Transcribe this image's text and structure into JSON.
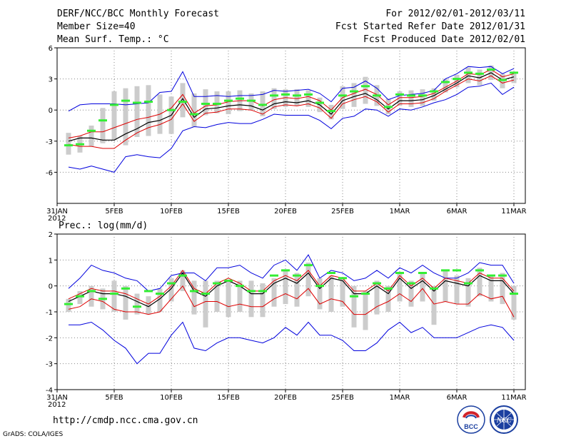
{
  "header": {
    "title": "DERF/NCC/BCC Monthly Forecast",
    "member_size": "Member Size=40",
    "variable": "Mean Surf. Temp.: °C",
    "period": "For 2012/02/01-2012/03/11",
    "started": "Fcst Started Refer Date 2012/01/31",
    "produced": "Fcst Produced Date 2012/02/01"
  },
  "lower_panel_label": "Prec.: log(mm/d)",
  "footer": {
    "url": "http://cmdp.ncc.cma.gov.cn",
    "credit": "GrADS: COLA/IGES"
  },
  "logos": {
    "bcc": "BCC",
    "ncc": "NCC"
  },
  "colors": {
    "envelope": "#0000dd",
    "spread": "#dd0000",
    "mean": "#000000",
    "obs": "#33ee33",
    "box": "#cccccc"
  },
  "chart_data": [
    {
      "type": "line",
      "title": "Mean Surf. Temp.: °C",
      "x_tick_labels": [
        "31JAN",
        "5FEB",
        "10FEB",
        "15FEB",
        "20FEB",
        "25FEB",
        "1MAR",
        "6MAR",
        "11MAR"
      ],
      "x_tick_days": [
        0,
        5,
        10,
        15,
        20,
        25,
        30,
        35,
        40
      ],
      "x_year_label": "2012",
      "ylim": [
        -9,
        6
      ],
      "y_ticks": [
        -6,
        -3,
        0,
        3,
        6
      ],
      "days": [
        1,
        2,
        3,
        4,
        5,
        6,
        7,
        8,
        9,
        10,
        11,
        12,
        13,
        14,
        15,
        16,
        17,
        18,
        19,
        20,
        21,
        22,
        23,
        24,
        25,
        26,
        27,
        28,
        29,
        30,
        31,
        32,
        33,
        34,
        35,
        36,
        37,
        38,
        39,
        40
      ],
      "series": [
        {
          "name": "max",
          "values": [
            -0.1,
            0.5,
            0.6,
            0.6,
            0.6,
            0.5,
            0.6,
            0.7,
            1.7,
            1.8,
            3.7,
            1.3,
            1.3,
            1.4,
            1.3,
            1.4,
            1.4,
            1.5,
            1.9,
            1.8,
            1.9,
            2.0,
            1.6,
            0.8,
            2.1,
            2.2,
            2.8,
            2.1,
            1.0,
            1.4,
            1.5,
            1.6,
            1.9,
            3.0,
            3.5,
            4.2,
            4.1,
            4.2,
            3.5,
            4.0
          ]
        },
        {
          "name": "upper",
          "values": [
            -2.7,
            -2.5,
            -2.1,
            -2.1,
            -1.7,
            -1.3,
            -0.9,
            -0.7,
            -0.4,
            0.2,
            1.5,
            -0.3,
            0.4,
            0.5,
            0.8,
            0.9,
            0.9,
            0.4,
            1.0,
            1.2,
            1.1,
            1.3,
            0.9,
            0.0,
            1.2,
            1.6,
            2.0,
            1.5,
            0.5,
            1.2,
            1.2,
            1.3,
            1.6,
            2.2,
            2.8,
            3.5,
            3.4,
            3.9,
            3.2,
            3.5
          ]
        },
        {
          "name": "mean",
          "values": [
            -3.0,
            -2.7,
            -2.7,
            -2.9,
            -2.9,
            -2.3,
            -1.8,
            -1.2,
            -1.0,
            -0.5,
            1.1,
            -0.7,
            0.1,
            0.2,
            0.4,
            0.5,
            0.4,
            0.0,
            0.6,
            0.8,
            0.7,
            0.9,
            0.5,
            -0.4,
            0.9,
            1.3,
            1.6,
            1.0,
            0.1,
            0.9,
            0.9,
            1.0,
            1.4,
            2.0,
            2.6,
            3.3,
            3.1,
            3.6,
            2.9,
            3.2
          ]
        },
        {
          "name": "lower",
          "values": [
            -3.3,
            -3.5,
            -3.5,
            -3.7,
            -3.7,
            -2.9,
            -2.2,
            -1.7,
            -1.4,
            -0.9,
            0.6,
            -1.1,
            -0.3,
            -0.2,
            0.1,
            0.1,
            0.0,
            -0.4,
            0.3,
            0.5,
            0.4,
            0.6,
            0.2,
            -0.8,
            0.6,
            1.0,
            1.3,
            0.8,
            -0.2,
            0.6,
            0.6,
            0.7,
            1.1,
            1.8,
            2.4,
            3.0,
            2.8,
            3.3,
            2.6,
            2.9
          ]
        },
        {
          "name": "min",
          "values": [
            -5.5,
            -5.7,
            -5.4,
            -5.7,
            -6.0,
            -4.5,
            -4.3,
            -4.5,
            -4.6,
            -3.7,
            -2.0,
            -1.6,
            -1.7,
            -1.4,
            -1.2,
            -1.3,
            -1.3,
            -0.9,
            -0.4,
            -0.5,
            -0.5,
            -0.5,
            -1.0,
            -1.8,
            -0.8,
            -0.6,
            0.1,
            0.0,
            -0.6,
            0.1,
            0.0,
            0.3,
            0.7,
            1.0,
            1.5,
            2.2,
            2.3,
            2.6,
            1.5,
            2.2
          ]
        }
      ],
      "boxes": [
        [
          -4.3,
          -2.2
        ],
        [
          -4.1,
          -2.5
        ],
        [
          -3.5,
          -1.5
        ],
        [
          -3.2,
          0.2
        ],
        [
          -2.9,
          1.8
        ],
        [
          -3.4,
          2.1
        ],
        [
          -2.6,
          2.3
        ],
        [
          -2.5,
          2.4
        ],
        [
          -2.3,
          1.5
        ],
        [
          -2.3,
          1.3
        ],
        [
          -0.7,
          2.6
        ],
        [
          -1.6,
          1.6
        ],
        [
          -0.5,
          2.0
        ],
        [
          -0.3,
          1.8
        ],
        [
          -0.4,
          1.8
        ],
        [
          -0.1,
          1.9
        ],
        [
          0.0,
          1.6
        ],
        [
          -0.6,
          1.8
        ],
        [
          0.1,
          2.1
        ],
        [
          0.3,
          2.0
        ],
        [
          0.4,
          2.0
        ],
        [
          0.3,
          1.9
        ],
        [
          -0.2,
          1.2
        ],
        [
          -0.9,
          0.5
        ],
        [
          0.1,
          2.3
        ],
        [
          0.3,
          2.6
        ],
        [
          0.6,
          3.2
        ],
        [
          0.4,
          2.4
        ],
        [
          -0.4,
          1.1
        ],
        [
          0.4,
          1.8
        ],
        [
          0.3,
          1.9
        ],
        [
          0.4,
          2.0
        ],
        [
          0.9,
          2.1
        ],
        [
          1.7,
          3.0
        ],
        [
          2.2,
          3.4
        ],
        [
          2.6,
          4.1
        ],
        [
          2.4,
          3.9
        ],
        [
          2.9,
          4.3
        ],
        [
          2.1,
          3.5
        ],
        [
          2.6,
          3.7
        ]
      ],
      "observed": [
        -3.4,
        -3.3,
        -2.0,
        -1.0,
        0.5,
        0.9,
        0.7,
        0.8,
        null,
        0.0,
        0.8,
        -0.4,
        0.6,
        0.6,
        0.9,
        1.1,
        0.9,
        0.5,
        1.4,
        1.5,
        1.4,
        1.5,
        0.7,
        -0.1,
        1.4,
        1.8,
        2.3,
        1.4,
        0.3,
        1.5,
        1.4,
        1.4,
        1.8,
        2.7,
        3.0,
        3.6,
        3.5,
        3.9,
        2.9,
        3.6
      ]
    },
    {
      "type": "line",
      "title": "Prec.: log(mm/d)",
      "x_tick_labels": [
        "31JAN",
        "5FEB",
        "10FEB",
        "15FEB",
        "20FEB",
        "25FEB",
        "1MAR",
        "6MAR",
        "11MAR"
      ],
      "x_tick_days": [
        0,
        5,
        10,
        15,
        20,
        25,
        30,
        35,
        40
      ],
      "x_year_label": "2012",
      "ylim": [
        -4,
        2
      ],
      "y_ticks": [
        -4,
        -3,
        -2,
        -1,
        0,
        1,
        2
      ],
      "days": [
        1,
        2,
        3,
        4,
        5,
        6,
        7,
        8,
        9,
        10,
        11,
        12,
        13,
        14,
        15,
        16,
        17,
        18,
        19,
        20,
        21,
        22,
        23,
        24,
        25,
        26,
        27,
        28,
        29,
        30,
        31,
        32,
        33,
        34,
        35,
        36,
        37,
        38,
        39,
        40
      ],
      "series": [
        {
          "name": "max",
          "values": [
            -0.1,
            0.3,
            0.8,
            0.6,
            0.5,
            0.3,
            0.2,
            -0.2,
            -0.1,
            0.4,
            0.5,
            0.5,
            0.2,
            0.7,
            0.7,
            0.8,
            0.5,
            0.3,
            0.8,
            1.0,
            0.6,
            1.2,
            0.3,
            0.6,
            0.5,
            0.2,
            0.3,
            0.6,
            0.3,
            0.7,
            0.5,
            0.8,
            0.5,
            0.3,
            0.3,
            0.5,
            0.9,
            0.8,
            0.8,
            0.1
          ]
        },
        {
          "name": "upper",
          "values": [
            -0.5,
            -0.3,
            -0.1,
            -0.2,
            -0.2,
            -0.3,
            -0.5,
            -0.7,
            -0.4,
            0.0,
            0.6,
            -0.1,
            -0.3,
            0.1,
            0.3,
            0.1,
            -0.2,
            -0.2,
            0.2,
            0.4,
            0.2,
            0.6,
            0.0,
            0.4,
            0.3,
            -0.2,
            -0.2,
            0.1,
            -0.2,
            0.4,
            0.0,
            0.3,
            -0.1,
            0.3,
            0.2,
            0.1,
            0.5,
            0.3,
            0.3,
            -0.2
          ]
        },
        {
          "name": "mean",
          "values": [
            -0.6,
            -0.4,
            -0.2,
            -0.3,
            -0.3,
            -0.4,
            -0.6,
            -0.8,
            -0.5,
            -0.1,
            0.5,
            -0.2,
            -0.4,
            0.0,
            0.2,
            0.0,
            -0.3,
            -0.3,
            0.1,
            0.3,
            0.1,
            0.5,
            -0.1,
            0.3,
            0.2,
            -0.3,
            -0.3,
            0.0,
            -0.3,
            0.3,
            -0.1,
            0.2,
            -0.2,
            0.2,
            0.1,
            0.0,
            0.4,
            0.2,
            0.2,
            -0.3
          ]
        },
        {
          "name": "lower",
          "values": [
            -0.9,
            -0.8,
            -0.5,
            -0.6,
            -0.9,
            -1.0,
            -1.0,
            -1.1,
            -1.0,
            -0.5,
            0.0,
            -0.8,
            -0.6,
            -0.6,
            -0.8,
            -0.7,
            -0.8,
            -0.8,
            -0.5,
            -0.3,
            -0.5,
            -0.1,
            -0.7,
            -0.5,
            -0.6,
            -1.1,
            -1.1,
            -0.8,
            -0.6,
            -0.3,
            -0.6,
            -0.1,
            -0.7,
            -0.6,
            -0.7,
            -0.7,
            -0.3,
            -0.5,
            -0.4,
            -1.2
          ]
        },
        {
          "name": "min",
          "values": [
            -1.5,
            -1.5,
            -1.4,
            -1.7,
            -2.1,
            -2.4,
            -3.0,
            -2.6,
            -2.6,
            -1.9,
            -1.4,
            -2.4,
            -2.5,
            -2.2,
            -2.0,
            -2.0,
            -2.1,
            -2.2,
            -2.0,
            -1.6,
            -1.9,
            -1.4,
            -1.9,
            -1.9,
            -2.1,
            -2.5,
            -2.5,
            -2.2,
            -1.7,
            -1.4,
            -1.8,
            -1.6,
            -2.0,
            -2.0,
            -2.0,
            -1.8,
            -1.6,
            -1.5,
            -1.6,
            -2.1
          ]
        }
      ],
      "boxes": [
        [
          -1.0,
          -0.5
        ],
        [
          -0.7,
          -0.2
        ],
        [
          -0.8,
          0.0
        ],
        [
          -0.9,
          -0.1
        ],
        [
          -1.0,
          0.2
        ],
        [
          -1.3,
          0.0
        ],
        [
          -1.1,
          -0.3
        ],
        [
          -1.1,
          -0.4
        ],
        [
          -1.0,
          -0.1
        ],
        [
          -0.6,
          0.3
        ],
        [
          -0.2,
          0.6
        ],
        [
          -1.1,
          0.2
        ],
        [
          -1.6,
          0.2
        ],
        [
          -1.0,
          0.2
        ],
        [
          -1.2,
          0.2
        ],
        [
          -1.0,
          0.2
        ],
        [
          -1.2,
          0.2
        ],
        [
          -1.2,
          0.1
        ],
        [
          -0.8,
          0.3
        ],
        [
          -0.7,
          0.6
        ],
        [
          -0.8,
          0.5
        ],
        [
          -0.4,
          0.9
        ],
        [
          -0.9,
          0.3
        ],
        [
          -1.0,
          0.4
        ],
        [
          -0.8,
          0.3
        ],
        [
          -1.6,
          0.0
        ],
        [
          -1.7,
          -0.2
        ],
        [
          -1.1,
          0.2
        ],
        [
          -1.0,
          0.0
        ],
        [
          -0.6,
          0.5
        ],
        [
          -0.8,
          0.2
        ],
        [
          -0.6,
          0.5
        ],
        [
          -1.5,
          0.0
        ],
        [
          -0.6,
          0.6
        ],
        [
          -0.7,
          0.4
        ],
        [
          -0.8,
          0.3
        ],
        [
          -0.4,
          0.7
        ],
        [
          -0.6,
          0.4
        ],
        [
          -0.7,
          0.5
        ],
        [
          -1.3,
          0.0
        ]
      ],
      "observed": [
        -0.7,
        -0.4,
        -0.2,
        -0.5,
        -0.3,
        -0.1,
        -0.8,
        -0.2,
        -0.3,
        0.1,
        0.4,
        -0.2,
        -0.3,
        0.1,
        0.2,
        0.0,
        -0.2,
        -0.2,
        0.4,
        0.6,
        0.4,
        0.8,
        0.0,
        0.5,
        0.3,
        -0.4,
        -0.3,
        0.1,
        -0.1,
        0.5,
        0.1,
        0.5,
        -0.1,
        0.6,
        0.6,
        0.1,
        0.6,
        0.4,
        0.4,
        -0.3
      ]
    }
  ]
}
